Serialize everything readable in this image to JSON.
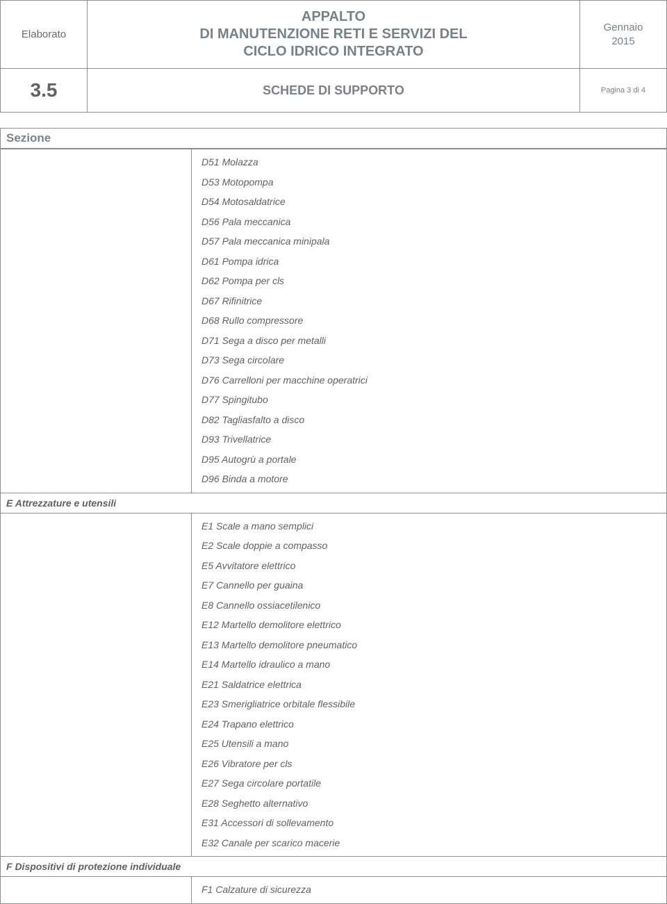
{
  "header": {
    "elaborato_label": "Elaborato",
    "elaborato_num": "3.5",
    "title_line1": "APPALTO",
    "title_line2": "DI MANUTENZIONE RETI E SERVIZI DEL",
    "title_line3": "CICLO IDRICO INTEGRATO",
    "subtitle": "SCHEDE DI SUPPORTO",
    "date_line1": "Gennaio",
    "date_line2": "2015",
    "page": "Pagina 3 di 4"
  },
  "section_label": "Sezione",
  "group_e_label": "E Attrezzature e utensili",
  "group_f_label": "F Dispositivi di protezione individuale",
  "items_d": [
    "D51 Molazza",
    "D53 Motopompa",
    "D54 Motosaldatrice",
    "D56 Pala meccanica",
    "D57 Pala meccanica minipala",
    "D61 Pompa idrica",
    "D62 Pompa per cls",
    "D67 Rifinitrice",
    "D68 Rullo compressore",
    "D71 Sega a disco per metalli",
    "D73 Sega circolare",
    "D76 Carrelloni per macchine operatrici",
    "D77 Spingitubo",
    "D82 Tagliasfalto a disco",
    "D93 Trivellatrice",
    "D95 Autogrù a portale",
    "D96 Binda a motore"
  ],
  "items_e": [
    "E1 Scale a mano semplici",
    "E2 Scale doppie a compasso",
    "E5 Avvitatore elettrico",
    "E7 Cannello per guaina",
    "E8 Cannello ossiacetilenico",
    "E12 Martello demolitore elettrico",
    "E13 Martello demolitore pneumatico",
    "E14 Martello idraulico a mano",
    "E21 Saldatrice elettrica",
    "E23 Smerigliatrice orbitale flessibile",
    "E24 Trapano elettrico",
    "E25 Utensili a mano",
    "E26 Vibratore per cls",
    "E27 Sega circolare portatile",
    "E28 Seghetto alternativo",
    "E31 Accessori di sollevamento",
    "E32 Canale per scarico macerie"
  ],
  "items_f": [
    "F1 Calzature di sicurezza"
  ]
}
